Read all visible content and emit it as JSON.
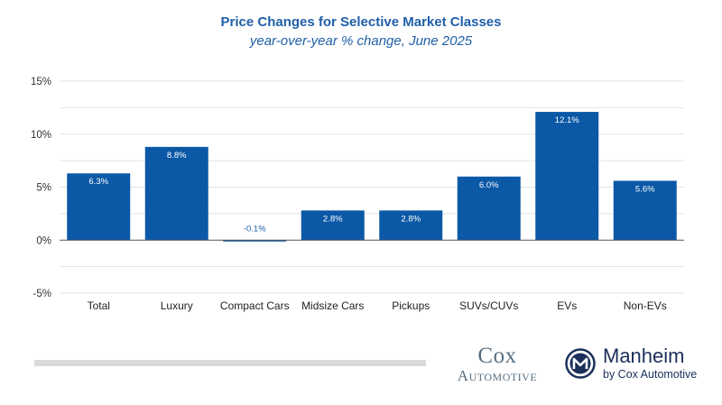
{
  "chart_data": {
    "type": "bar",
    "title": "Price Changes for Selective Market Classes",
    "subtitle": "year-over-year % change, June 2025",
    "categories": [
      "Total",
      "Luxury",
      "Compact Cars",
      "Midsize Cars",
      "Pickups",
      "SUVs/CUVs",
      "EVs",
      "Non-EVs"
    ],
    "values": [
      6.3,
      8.8,
      -0.1,
      2.8,
      2.8,
      6.0,
      12.1,
      5.6
    ],
    "data_labels": [
      "6.3%",
      "8.8%",
      "-0.1%",
      "2.8%",
      "2.8%",
      "6.0%",
      "12.1%",
      "5.6%"
    ],
    "yticks": [
      15,
      10,
      5,
      0,
      -5
    ],
    "ytick_labels": [
      "15%",
      "10%",
      "5%",
      "0%",
      "-5%"
    ],
    "ylim": [
      -5,
      15
    ],
    "grid": true,
    "bar_color": "#0b58a6",
    "xlabel": "",
    "ylabel": ""
  },
  "logos": {
    "cox_line1": "Cox",
    "cox_line2": "Automotive",
    "manheim_name": "Manheim",
    "manheim_by": "by Cox Automotive"
  }
}
